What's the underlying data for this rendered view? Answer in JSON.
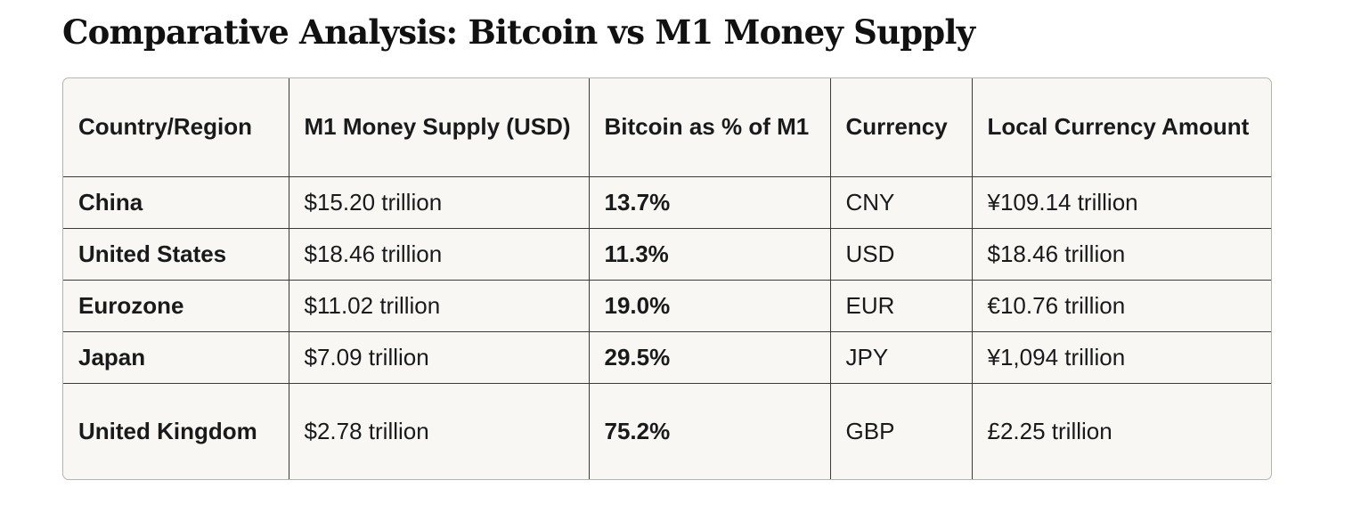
{
  "title": "Comparative Analysis: Bitcoin vs M1 Money Supply",
  "table": {
    "headers": [
      "Country/Region",
      "M1 Money Supply (USD)",
      "Bitcoin as % of M1",
      "Currency",
      "Local Currency Amount"
    ],
    "rows": [
      {
        "region": "China",
        "m1_usd": "$15.20 trillion",
        "btc_pct": "13.7%",
        "currency": "CNY",
        "local_amount": "¥109.14 trillion"
      },
      {
        "region": "United States",
        "m1_usd": "$18.46 trillion",
        "btc_pct": "11.3%",
        "currency": "USD",
        "local_amount": "$18.46 trillion"
      },
      {
        "region": "Eurozone",
        "m1_usd": "$11.02 trillion",
        "btc_pct": "19.0%",
        "currency": "EUR",
        "local_amount": "€10.76 trillion"
      },
      {
        "region": "Japan",
        "m1_usd": "$7.09 trillion",
        "btc_pct": "29.5%",
        "currency": "JPY",
        "local_amount": "¥1,094 trillion"
      },
      {
        "region": "United Kingdom",
        "m1_usd": "$2.78 trillion",
        "btc_pct": "75.2%",
        "currency": "GBP",
        "local_amount": "£2.25 trillion"
      }
    ]
  }
}
